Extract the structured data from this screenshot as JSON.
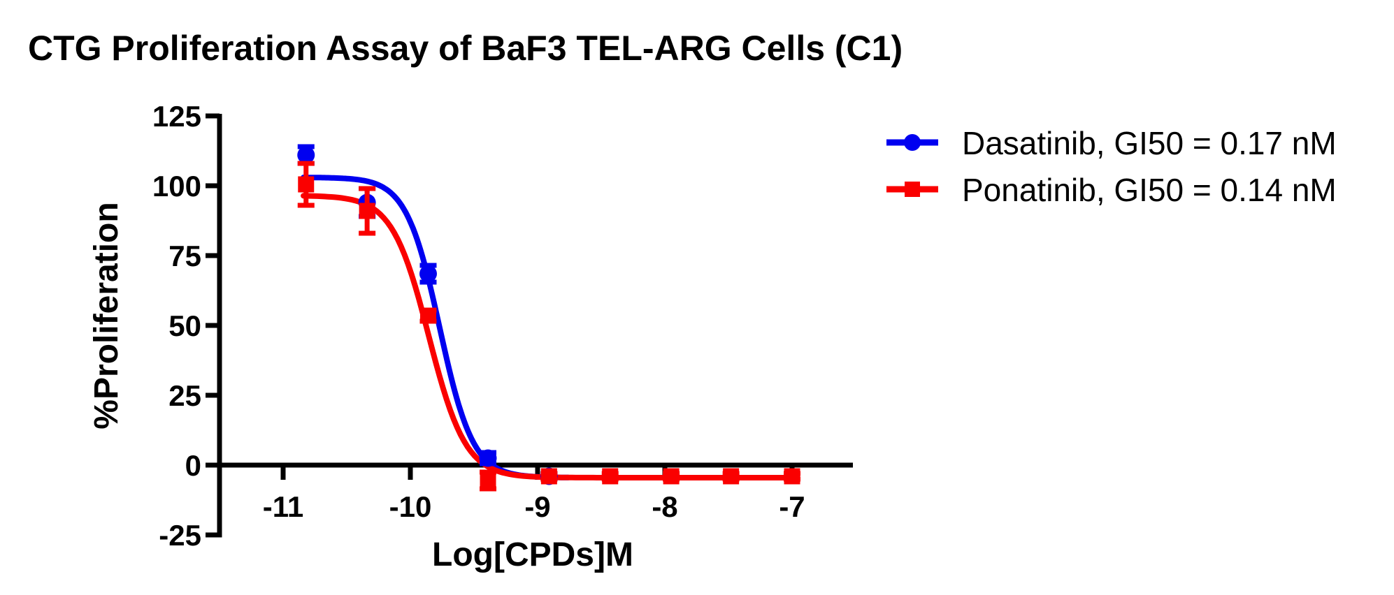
{
  "title": "CTG Proliferation Assay of BaF3 TEL-ARG Cells (C1)",
  "chart_data": {
    "type": "line",
    "title": "CTG Proliferation Assay of BaF3 TEL-ARG Cells (C1)",
    "xlabel": "Log[CPDs]M",
    "ylabel": "%Proliferation",
    "xlim": [
      -11.5,
      -6.5
    ],
    "ylim": [
      -25,
      125
    ],
    "xticks": [
      -11,
      -10,
      -9,
      -8,
      -7
    ],
    "yticks": [
      125,
      100,
      75,
      50,
      25,
      0,
      -25
    ],
    "grid": false,
    "legend_position": "top-right",
    "axis_color": "#000000",
    "background_color": "#ffffff",
    "series": [
      {
        "name": "Dasatinib",
        "legend_label": "Dasatinib, GI50 = 0.17 nM",
        "gi50": "0.17 nM",
        "color": "#0000F0",
        "marker": "circle",
        "x": [
          -10.82,
          -10.34,
          -9.86,
          -9.39,
          -8.91
        ],
        "y": [
          111,
          94,
          68.5,
          2.5,
          -4
        ],
        "yerr": [
          3,
          5,
          3,
          2,
          1
        ],
        "fit": {
          "top": 103,
          "bottom": -4.5,
          "log_gi50": -9.77,
          "hill": 3.3,
          "x_start": -10.84,
          "x_end": -8.76
        }
      },
      {
        "name": "Ponatinib",
        "legend_label": "Ponatinib, GI50 = 0.14 nM",
        "gi50": "0.14 nM",
        "color": "#FA0000",
        "marker": "square",
        "x": [
          -10.82,
          -10.34,
          -9.86,
          -9.39,
          -8.91,
          -8.43,
          -7.95,
          -7.48,
          -7.0
        ],
        "y": [
          100.5,
          91,
          53.5,
          -5.5,
          -4,
          -4,
          -4,
          -4,
          -4
        ],
        "yerr": [
          7.5,
          8,
          2,
          3,
          1,
          1,
          1,
          1,
          1
        ],
        "fit": {
          "top": 96.5,
          "bottom": -4.5,
          "log_gi50": -9.854,
          "hill": 3.0,
          "x_start": -10.84,
          "x_end": -7.0
        }
      }
    ]
  }
}
